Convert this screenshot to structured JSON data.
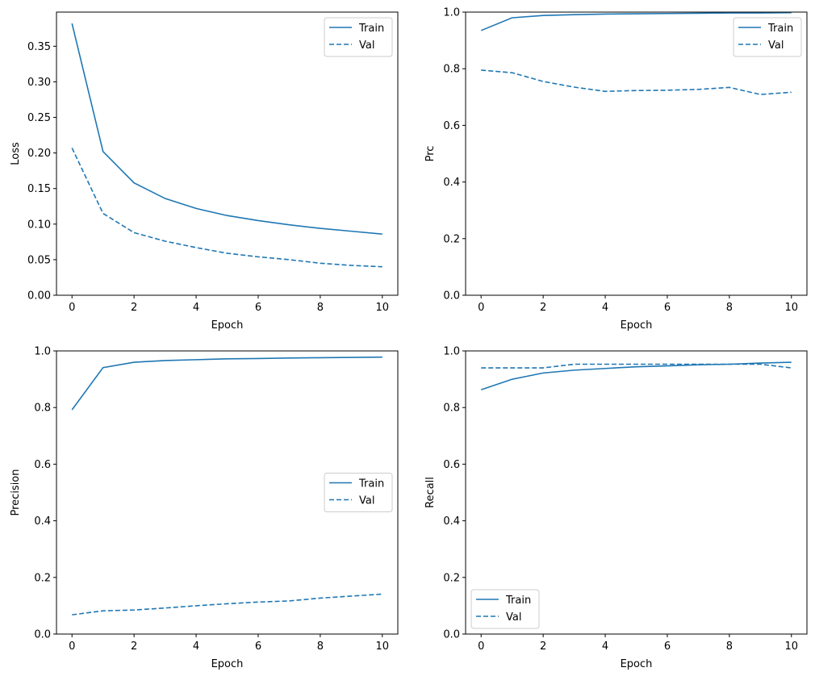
{
  "chart_data": [
    {
      "type": "line",
      "xlabel": "Epoch",
      "ylabel": "Loss",
      "x": [
        0,
        1,
        2,
        3,
        4,
        5,
        6,
        7,
        8,
        9,
        10
      ],
      "xlim": [
        -0.5,
        10.5
      ],
      "ylim": [
        0,
        0.398
      ],
      "xticks": [
        "0",
        "2",
        "4",
        "6",
        "8",
        "10"
      ],
      "yticks": [
        "0.00",
        "0.05",
        "0.10",
        "0.15",
        "0.20",
        "0.25",
        "0.30",
        "0.35"
      ],
      "legend": "upper-right",
      "grid": false,
      "series": [
        {
          "name": "Train",
          "style": "solid",
          "values": [
            0.382,
            0.202,
            0.158,
            0.136,
            0.122,
            0.112,
            0.105,
            0.099,
            0.094,
            0.09,
            0.086
          ]
        },
        {
          "name": "Val",
          "style": "dashed",
          "values": [
            0.207,
            0.115,
            0.088,
            0.076,
            0.067,
            0.059,
            0.054,
            0.05,
            0.045,
            0.042,
            0.04
          ]
        }
      ]
    },
    {
      "type": "line",
      "xlabel": "Epoch",
      "ylabel": "Prc",
      "x": [
        0,
        1,
        2,
        3,
        4,
        5,
        6,
        7,
        8,
        9,
        10
      ],
      "xlim": [
        -0.5,
        10.5
      ],
      "ylim": [
        0,
        1
      ],
      "xticks": [
        "0",
        "2",
        "4",
        "6",
        "8",
        "10"
      ],
      "yticks": [
        "0.0",
        "0.2",
        "0.4",
        "0.6",
        "0.8",
        "1.0"
      ],
      "legend": "upper-right",
      "grid": false,
      "series": [
        {
          "name": "Train",
          "style": "solid",
          "values": [
            0.935,
            0.98,
            0.988,
            0.991,
            0.993,
            0.994,
            0.995,
            0.996,
            0.997,
            0.997,
            0.998
          ]
        },
        {
          "name": "Val",
          "style": "dashed",
          "values": [
            0.795,
            0.786,
            0.755,
            0.735,
            0.72,
            0.723,
            0.724,
            0.727,
            0.734,
            0.709,
            0.717
          ]
        }
      ]
    },
    {
      "type": "line",
      "xlabel": "Epoch",
      "ylabel": "Precision",
      "x": [
        0,
        1,
        2,
        3,
        4,
        5,
        6,
        7,
        8,
        9,
        10
      ],
      "xlim": [
        -0.5,
        10.5
      ],
      "ylim": [
        0,
        1
      ],
      "xticks": [
        "0",
        "2",
        "4",
        "6",
        "8",
        "10"
      ],
      "yticks": [
        "0.0",
        "0.2",
        "0.4",
        "0.6",
        "0.8",
        "1.0"
      ],
      "legend": "center-right",
      "grid": false,
      "series": [
        {
          "name": "Train",
          "style": "solid",
          "values": [
            0.792,
            0.941,
            0.96,
            0.966,
            0.969,
            0.972,
            0.973,
            0.975,
            0.976,
            0.977,
            0.978
          ]
        },
        {
          "name": "Val",
          "style": "dashed",
          "values": [
            0.068,
            0.082,
            0.085,
            0.092,
            0.1,
            0.107,
            0.113,
            0.117,
            0.127,
            0.134,
            0.141
          ]
        }
      ]
    },
    {
      "type": "line",
      "xlabel": "Epoch",
      "ylabel": "Recall",
      "x": [
        0,
        1,
        2,
        3,
        4,
        5,
        6,
        7,
        8,
        9,
        10
      ],
      "xlim": [
        -0.5,
        10.5
      ],
      "ylim": [
        0,
        1
      ],
      "xticks": [
        "0",
        "2",
        "4",
        "6",
        "8",
        "10"
      ],
      "yticks": [
        "0.0",
        "0.2",
        "0.4",
        "0.6",
        "0.8",
        "1.0"
      ],
      "legend": "lower-left",
      "grid": false,
      "series": [
        {
          "name": "Train",
          "style": "solid",
          "values": [
            0.863,
            0.9,
            0.922,
            0.932,
            0.938,
            0.944,
            0.947,
            0.951,
            0.953,
            0.957,
            0.96
          ]
        },
        {
          "name": "Val",
          "style": "dashed",
          "values": [
            0.94,
            0.94,
            0.94,
            0.953,
            0.953,
            0.953,
            0.953,
            0.953,
            0.953,
            0.953,
            0.94
          ]
        }
      ]
    }
  ],
  "colors": {
    "line": "#1f77b4",
    "axes": "#000000",
    "legend_border": "#cccccc"
  }
}
